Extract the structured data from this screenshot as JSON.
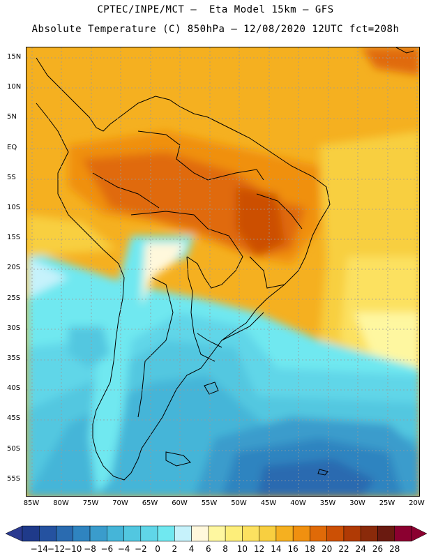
{
  "header": {
    "line1": "CPTEC/INPE/MCT –  Eta Model 15km – GFS",
    "line2": "Absolute Temperature (C) 850hPa – 12/08/2020 12UTC fct=208h"
  },
  "map": {
    "lat_ticks": [
      "15N",
      "10N",
      "5N",
      "EQ",
      "5S",
      "10S",
      "15S",
      "20S",
      "25S",
      "30S",
      "35S",
      "40S",
      "45S",
      "50S",
      "55S"
    ],
    "lon_ticks": [
      "85W",
      "80W",
      "75W",
      "70W",
      "65W",
      "60W",
      "55W",
      "50W",
      "45W",
      "40W",
      "35W",
      "30W",
      "25W",
      "20W"
    ]
  },
  "legend": {
    "labels": [
      "-14",
      "-12",
      "-10",
      "-8",
      "-6",
      "-4",
      "-2",
      "0",
      "2",
      "4",
      "6",
      "8",
      "10",
      "12",
      "14",
      "16",
      "18",
      "20",
      "22",
      "24",
      "26",
      "28"
    ],
    "colors": [
      "#1f3a8a",
      "#2552a0",
      "#2a6bb0",
      "#2f84c0",
      "#3a9ccc",
      "#45b5d8",
      "#52c7e0",
      "#60d6e8",
      "#70e8f0",
      "#c6f2fb",
      "#fff8dc",
      "#fef7a0",
      "#fdee7a",
      "#fce160",
      "#f8cf40",
      "#f5b020",
      "#f09010",
      "#e06a08",
      "#cc5005",
      "#b03a05",
      "#8a2a0a",
      "#6a1a10",
      "#8b0030"
    ],
    "left_arrow_color": "#2a3a90",
    "right_arrow_color": "#8b0030"
  }
}
